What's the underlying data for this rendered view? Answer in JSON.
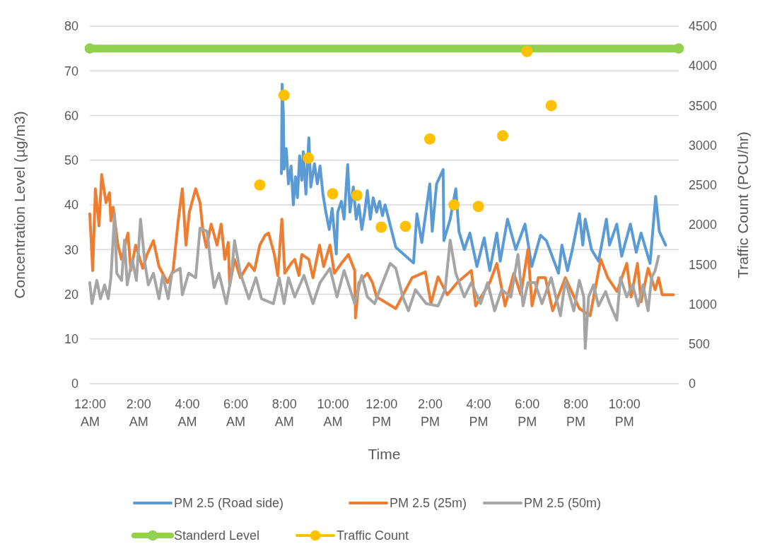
{
  "chart_data": {
    "type": "line",
    "xlabel": "Time",
    "ylabel": "Concentration Level (µg/m3)",
    "y2label": "Traffic Count (PCU/hr)",
    "xlim": [
      0,
      24.25
    ],
    "xticks": [
      {
        "value": 0,
        "label": "12:00 AM"
      },
      {
        "value": 2,
        "label": "2:00 AM"
      },
      {
        "value": 4,
        "label": "4:00 AM"
      },
      {
        "value": 6,
        "label": "6:00 AM"
      },
      {
        "value": 8,
        "label": "8:00 AM"
      },
      {
        "value": 10,
        "label": "10:00 AM"
      },
      {
        "value": 12,
        "label": "12:00 PM"
      },
      {
        "value": 14,
        "label": "2:00 PM"
      },
      {
        "value": 16,
        "label": "4:00 PM"
      },
      {
        "value": 18,
        "label": "6:00 PM"
      },
      {
        "value": 20,
        "label": "8:00 PM"
      },
      {
        "value": 22,
        "label": "10:00 PM"
      }
    ],
    "ylim": [
      0,
      80
    ],
    "yticks": [
      0,
      10,
      20,
      30,
      40,
      50,
      60,
      70,
      80
    ],
    "y2lim": [
      0,
      4500
    ],
    "y2ticks": [
      0,
      500,
      1000,
      1500,
      2000,
      2500,
      3000,
      3500,
      4000,
      4500
    ],
    "grid": "y",
    "legend": "bottom",
    "line_style": "solid",
    "series": [
      {
        "name": "PM 2.5 (Road side)",
        "color": "#5b9bd5",
        "marker": "none",
        "x": [
          7.89,
          7.92,
          7.97,
          8.0,
          8.09,
          8.18,
          8.29,
          8.38,
          8.47,
          8.55,
          8.64,
          8.73,
          8.79,
          8.9,
          9.02,
          9.1,
          9.25,
          9.37,
          9.48,
          9.6,
          9.72,
          9.86,
          9.98,
          10.07,
          10.15,
          10.21,
          10.36,
          10.47,
          10.62,
          10.71,
          10.85,
          10.97,
          11.08,
          11.2,
          11.32,
          11.43,
          11.55,
          11.67,
          11.81,
          11.93,
          12.05,
          12.16,
          12.6,
          13.33,
          13.47,
          13.67,
          14.0,
          14.1,
          14.28,
          14.55,
          14.58,
          14.84,
          15.07,
          15.2,
          15.42,
          15.65,
          15.94,
          16.24,
          16.47,
          16.76,
          16.9,
          17.2,
          17.54,
          17.92,
          18.2,
          18.56,
          18.8,
          19.3,
          19.44,
          19.67,
          19.87,
          20.16,
          20.3,
          20.4,
          20.66,
          20.95,
          21.27,
          21.4,
          21.7,
          21.9,
          22.26,
          22.5,
          22.7,
          23.07,
          23.3,
          23.45,
          23.71
        ],
        "values": [
          47,
          67,
          60.5,
          48,
          52.6,
          44.7,
          48.7,
          40,
          46.3,
          41.6,
          51,
          45.5,
          51.9,
          42.4,
          55,
          44,
          49.2,
          44.7,
          48.7,
          42.4,
          38.4,
          34.5,
          39.2,
          33.7,
          29,
          38.4,
          40.8,
          36.8,
          49,
          38.4,
          44,
          36.8,
          40,
          34.5,
          38.4,
          43.2,
          36.8,
          41.6,
          38.4,
          40.8,
          37.6,
          40,
          30.5,
          27,
          38,
          31.6,
          44.7,
          34.1,
          44.7,
          47.9,
          32,
          36.8,
          43.6,
          34.1,
          30,
          33.7,
          26.2,
          32.6,
          25.3,
          33.7,
          27.4,
          36.8,
          30,
          35.7,
          26.2,
          33.2,
          32,
          24.7,
          31,
          25.3,
          30,
          38,
          31,
          36.8,
          30,
          27.4,
          36.8,
          31,
          35.7,
          28.5,
          35.7,
          29.4,
          33.7,
          26.9,
          41.9,
          34.1,
          31
        ]
      },
      {
        "name": "PM 2.5 (25m)",
        "color": "#ed7d31",
        "marker": "none",
        "x": [
          0,
          0.12,
          0.23,
          0.38,
          0.49,
          0.67,
          0.81,
          0.87,
          0.96,
          1.16,
          1.31,
          1.57,
          1.69,
          1.89,
          2.18,
          2.36,
          2.62,
          2.85,
          3.2,
          3.43,
          3.64,
          3.81,
          3.96,
          4.1,
          4.36,
          4.54,
          4.66,
          4.8,
          5.0,
          5.24,
          5.41,
          5.56,
          5.7,
          5.76,
          5.96,
          6.2,
          6.55,
          6.78,
          7.0,
          7.22,
          7.36,
          7.6,
          7.74,
          7.91,
          8.03,
          8.29,
          8.44,
          8.61,
          8.73,
          9.02,
          9.19,
          9.46,
          9.63,
          9.89,
          10.07,
          10.36,
          10.65,
          10.91,
          10.94,
          11.08,
          11.43,
          11.64,
          11.81,
          12.6,
          13.27,
          13.82,
          14.05,
          14.34,
          14.72,
          15.13,
          15.71,
          15.89,
          16.47,
          16.76,
          17.1,
          17.46,
          17.75,
          18.04,
          18.21,
          18.47,
          18.76,
          19.06,
          19.58,
          20.16,
          20.6,
          21.04,
          21.33,
          21.71,
          22.11,
          22.29,
          22.55,
          22.7,
          22.99,
          23.28,
          23.42,
          23.57,
          24.03
        ],
        "values": [
          38,
          25.3,
          43.6,
          35.3,
          46.8,
          40.5,
          42.7,
          36.4,
          39.5,
          31,
          27.8,
          33.7,
          25.3,
          31,
          25.8,
          28.9,
          32,
          26.2,
          22.6,
          25.3,
          36.4,
          43.6,
          31,
          38.4,
          43.6,
          40.5,
          34.1,
          30.5,
          35.7,
          31,
          35.7,
          27.8,
          31.6,
          22,
          27.8,
          23.7,
          26.9,
          25.3,
          31,
          33.2,
          33.7,
          28.9,
          24.2,
          36.8,
          24.7,
          26.9,
          27.8,
          24.2,
          28.9,
          27.8,
          23.7,
          31,
          26.2,
          31,
          24.7,
          26.9,
          28.9,
          25.3,
          14.7,
          22.6,
          24.7,
          22.6,
          19.4,
          16.8,
          23.7,
          25,
          17.9,
          23.9,
          19.9,
          22.6,
          25.3,
          17.4,
          22.6,
          26.9,
          17.4,
          24.7,
          19.9,
          30,
          17.4,
          23.7,
          23.7,
          16.3,
          23.7,
          16.8,
          15.2,
          27.8,
          23.7,
          20.6,
          26.9,
          19.4,
          26.9,
          18.3,
          25.8,
          21,
          23.7,
          19.9,
          19.9
        ]
      },
      {
        "name": "PM 2.5 (50m)",
        "color": "#a5a5a5",
        "marker": "none",
        "x": [
          0,
          0.09,
          0.29,
          0.44,
          0.61,
          0.76,
          0.87,
          1.02,
          1.11,
          1.31,
          1.43,
          1.54,
          1.75,
          1.92,
          2.09,
          2.27,
          2.41,
          2.62,
          2.85,
          3.0,
          3.23,
          3.38,
          3.72,
          3.81,
          4.07,
          4.36,
          4.54,
          4.83,
          4.98,
          5.12,
          5.32,
          5.62,
          5.82,
          5.96,
          6.2,
          6.55,
          6.84,
          7.07,
          7.56,
          7.8,
          8.0,
          8.18,
          8.44,
          8.82,
          9.19,
          9.48,
          9.89,
          10.18,
          10.47,
          10.91,
          11.2,
          11.43,
          11.73,
          12.02,
          12.37,
          12.6,
          12.89,
          13.12,
          13.41,
          13.85,
          14.34,
          14.63,
          14.84,
          15.07,
          15.42,
          15.71,
          16.09,
          16.38,
          16.67,
          16.96,
          17.34,
          17.63,
          17.84,
          18.04,
          18.33,
          18.62,
          19.0,
          19.38,
          19.58,
          19.93,
          20.16,
          20.34,
          20.4,
          20.54,
          20.74,
          20.95,
          21.24,
          21.41,
          21.7,
          21.85,
          22.11,
          22.35,
          22.58,
          22.78,
          22.99,
          23.13,
          23.28,
          23.42
        ],
        "values": [
          22.6,
          17.9,
          23.1,
          19,
          22.1,
          19,
          23.7,
          38,
          24.7,
          23.1,
          32.1,
          22.1,
          27.8,
          23.1,
          36.8,
          26.9,
          22.1,
          24.7,
          19,
          24.2,
          19,
          24.7,
          25.8,
          19.9,
          24.7,
          23.7,
          34.8,
          34.1,
          26.9,
          21.5,
          24.7,
          17.9,
          23.7,
          32,
          24.7,
          19,
          23.7,
          19,
          17.9,
          23.7,
          17.9,
          23.7,
          19.4,
          24.2,
          17.9,
          22.6,
          25.8,
          19.4,
          25.3,
          17.9,
          24.2,
          19.4,
          17.9,
          22.1,
          26.9,
          25.8,
          19.4,
          16.3,
          21,
          17.9,
          17.4,
          21,
          32.1,
          24.7,
          19.4,
          22.6,
          17.9,
          22.6,
          16.3,
          21,
          19.4,
          28.9,
          17.4,
          22.6,
          22.6,
          17.9,
          23.7,
          15.2,
          23.1,
          16.3,
          23.1,
          19.4,
          7.9,
          19.4,
          22.1,
          17.4,
          20.6,
          17.9,
          14.2,
          23.7,
          19.4,
          22.1,
          17.4,
          22.1,
          16.3,
          23.7,
          25.3,
          28.5
        ]
      },
      {
        "name": "Standerd Level",
        "color": "#92d050",
        "marker": "circle",
        "x": [
          0,
          24.25
        ],
        "values": [
          75,
          75
        ]
      },
      {
        "name": "Traffic Count",
        "color": "#ffc000",
        "type": "scatter",
        "marker": "circle",
        "axis": "y2",
        "x": [
          7,
          8,
          9,
          10,
          11,
          12,
          13,
          14,
          15,
          16,
          17,
          18,
          19
        ],
        "values": [
          2500,
          3630,
          2840,
          2390,
          2370,
          1970,
          1980,
          3080,
          2250,
          2230,
          3120,
          4180,
          3500
        ]
      }
    ]
  }
}
